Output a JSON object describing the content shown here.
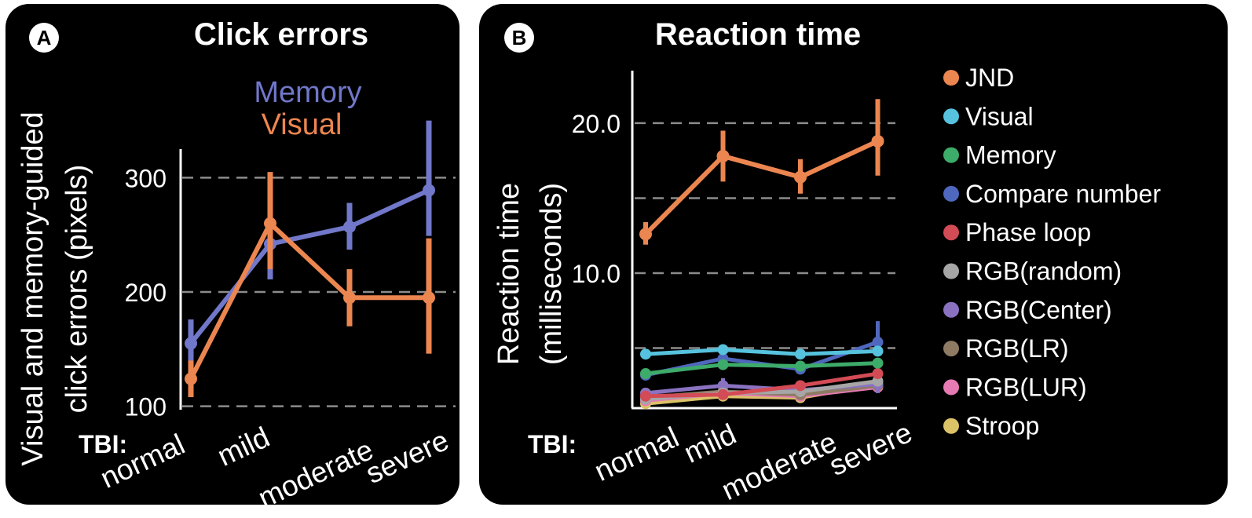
{
  "colors": {
    "panel_bg": "#000000",
    "text": "#ffffff",
    "grid": "#8c8c8c",
    "memory": "#7177c9",
    "visual": "#ec8650"
  },
  "chart_data": [
    {
      "type": "line",
      "badge": "A",
      "title": "Click errors",
      "ylabel_lines": [
        "Visual and memory-guided",
        "click errors (pixels)"
      ],
      "x_prefix": "TBI:",
      "categories": [
        "normal",
        "mild",
        "moderate",
        "severe"
      ],
      "ylim": [
        97,
        325
      ],
      "yticks": [
        100,
        200,
        300
      ],
      "grid": "dashed at ticks",
      "legend_position": "top",
      "series": [
        {
          "name": "Memory",
          "color": "#7177c9",
          "values": [
            155,
            242,
            257,
            289
          ],
          "err_low": [
            137,
            211,
            237,
            249
          ],
          "err_high": [
            176,
            256,
            278,
            350
          ]
        },
        {
          "name": "Visual",
          "color": "#ec8650",
          "values": [
            124,
            260,
            195,
            195
          ],
          "err_low": [
            108,
            220,
            170,
            146
          ],
          "err_high": [
            140,
            305,
            220,
            247
          ]
        }
      ]
    },
    {
      "type": "line",
      "badge": "B",
      "title": "Reaction time",
      "ylabel_lines": [
        "Reaction time",
        "(milliseconds)"
      ],
      "x_prefix": "TBI:",
      "categories": [
        "normal",
        "mild",
        "moderate",
        "severe"
      ],
      "ylim": [
        1,
        23.5
      ],
      "yticks": [
        10.0,
        20.0
      ],
      "ytick_labels": [
        "10.0",
        "20.0"
      ],
      "gridlines": [
        5,
        10,
        15,
        20
      ],
      "legend_position": "right",
      "series": [
        {
          "name": "JND",
          "color": "#ec8650",
          "values": [
            12.6,
            17.8,
            16.4,
            18.8
          ],
          "err_low": [
            11.9,
            16.1,
            15.3,
            16.5
          ],
          "err_high": [
            13.4,
            19.5,
            17.6,
            21.6
          ]
        },
        {
          "name": "Visual",
          "color": "#56c2dd",
          "values": [
            4.6,
            4.9,
            4.6,
            4.8
          ],
          "err_low": null,
          "err_high": null
        },
        {
          "name": "Memory",
          "color": "#3dab69",
          "values": [
            3.3,
            3.9,
            3.8,
            4.0
          ],
          "err_low": null,
          "err_high": null
        },
        {
          "name": "Compare number",
          "color": "#4f68be",
          "values": [
            3.2,
            4.3,
            3.6,
            5.4
          ],
          "err_low": [
            null,
            null,
            null,
            4.6
          ],
          "err_high": [
            null,
            null,
            null,
            6.8
          ]
        },
        {
          "name": "Phase loop",
          "color": "#d34b55",
          "values": [
            1.8,
            1.9,
            2.5,
            3.3
          ],
          "err_low": null,
          "err_high": null
        },
        {
          "name": "RGB(random)",
          "color": "#a6a6a6",
          "values": [
            1.6,
            2.0,
            2.1,
            2.8
          ],
          "err_low": null,
          "err_high": null
        },
        {
          "name": "RGB(Center)",
          "color": "#8a72c1",
          "values": [
            2.0,
            2.5,
            2.2,
            2.6
          ],
          "err_low": [
            null,
            2.0,
            null,
            2.0
          ],
          "err_high": [
            null,
            3.0,
            null,
            3.2
          ]
        },
        {
          "name": "RGB(LR)",
          "color": "#8f7b64",
          "values": [
            1.7,
            2.1,
            1.9,
            2.5
          ],
          "err_low": null,
          "err_high": null
        },
        {
          "name": "RGB(LUR)",
          "color": "#e67ab3",
          "values": [
            1.5,
            2.0,
            1.8,
            2.4
          ],
          "err_low": null,
          "err_high": null
        },
        {
          "name": "Stroop",
          "color": "#dbc267",
          "values": [
            1.3,
            1.8,
            1.7,
            2.6
          ],
          "err_low": [
            1.0,
            1.5,
            1.4,
            2.2
          ],
          "err_high": [
            1.6,
            2.1,
            2.0,
            3.0
          ]
        }
      ]
    }
  ]
}
